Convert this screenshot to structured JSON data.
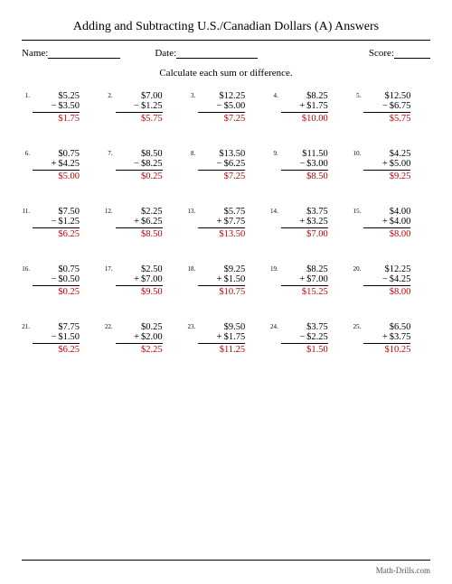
{
  "title": "Adding and Subtracting U.S./Canadian Dollars (A) Answers",
  "meta": {
    "name_label": "Name:",
    "date_label": "Date:",
    "score_label": "Score:"
  },
  "instruction": "Calculate each sum or difference.",
  "footer": "Math-Drills.com",
  "answer_color": "#c00000",
  "problems": [
    {
      "n": "1.",
      "a": "$5.25",
      "op": "−",
      "b": "$3.50",
      "ans": "$1.75"
    },
    {
      "n": "2.",
      "a": "$7.00",
      "op": "−",
      "b": "$1.25",
      "ans": "$5.75"
    },
    {
      "n": "3.",
      "a": "$12.25",
      "op": "−",
      "b": "$5.00",
      "ans": "$7.25"
    },
    {
      "n": "4.",
      "a": "$8.25",
      "op": "+",
      "b": "$1.75",
      "ans": "$10.00"
    },
    {
      "n": "5.",
      "a": "$12.50",
      "op": "−",
      "b": "$6.75",
      "ans": "$5.75"
    },
    {
      "n": "6.",
      "a": "$0.75",
      "op": "+",
      "b": "$4.25",
      "ans": "$5.00"
    },
    {
      "n": "7.",
      "a": "$8.50",
      "op": "−",
      "b": "$8.25",
      "ans": "$0.25"
    },
    {
      "n": "8.",
      "a": "$13.50",
      "op": "−",
      "b": "$6.25",
      "ans": "$7.25"
    },
    {
      "n": "9.",
      "a": "$11.50",
      "op": "−",
      "b": "$3.00",
      "ans": "$8.50"
    },
    {
      "n": "10.",
      "a": "$4.25",
      "op": "+",
      "b": "$5.00",
      "ans": "$9.25"
    },
    {
      "n": "11.",
      "a": "$7.50",
      "op": "−",
      "b": "$1.25",
      "ans": "$6.25"
    },
    {
      "n": "12.",
      "a": "$2.25",
      "op": "+",
      "b": "$6.25",
      "ans": "$8.50"
    },
    {
      "n": "13.",
      "a": "$5.75",
      "op": "+",
      "b": "$7.75",
      "ans": "$13.50"
    },
    {
      "n": "14.",
      "a": "$3.75",
      "op": "+",
      "b": "$3.25",
      "ans": "$7.00"
    },
    {
      "n": "15.",
      "a": "$4.00",
      "op": "+",
      "b": "$4.00",
      "ans": "$8.00"
    },
    {
      "n": "16.",
      "a": "$0.75",
      "op": "−",
      "b": "$0.50",
      "ans": "$0.25"
    },
    {
      "n": "17.",
      "a": "$2.50",
      "op": "+",
      "b": "$7.00",
      "ans": "$9.50"
    },
    {
      "n": "18.",
      "a": "$9.25",
      "op": "+",
      "b": "$1.50",
      "ans": "$10.75"
    },
    {
      "n": "19.",
      "a": "$8.25",
      "op": "+",
      "b": "$7.00",
      "ans": "$15.25"
    },
    {
      "n": "20.",
      "a": "$12.25",
      "op": "−",
      "b": "$4.25",
      "ans": "$8.00"
    },
    {
      "n": "21.",
      "a": "$7.75",
      "op": "−",
      "b": "$1.50",
      "ans": "$6.25"
    },
    {
      "n": "22.",
      "a": "$0.25",
      "op": "+",
      "b": "$2.00",
      "ans": "$2.25"
    },
    {
      "n": "23.",
      "a": "$9.50",
      "op": "+",
      "b": "$1.75",
      "ans": "$11.25"
    },
    {
      "n": "24.",
      "a": "$3.75",
      "op": "−",
      "b": "$2.25",
      "ans": "$1.50"
    },
    {
      "n": "25.",
      "a": "$6.50",
      "op": "+",
      "b": "$3.75",
      "ans": "$10.25"
    }
  ]
}
